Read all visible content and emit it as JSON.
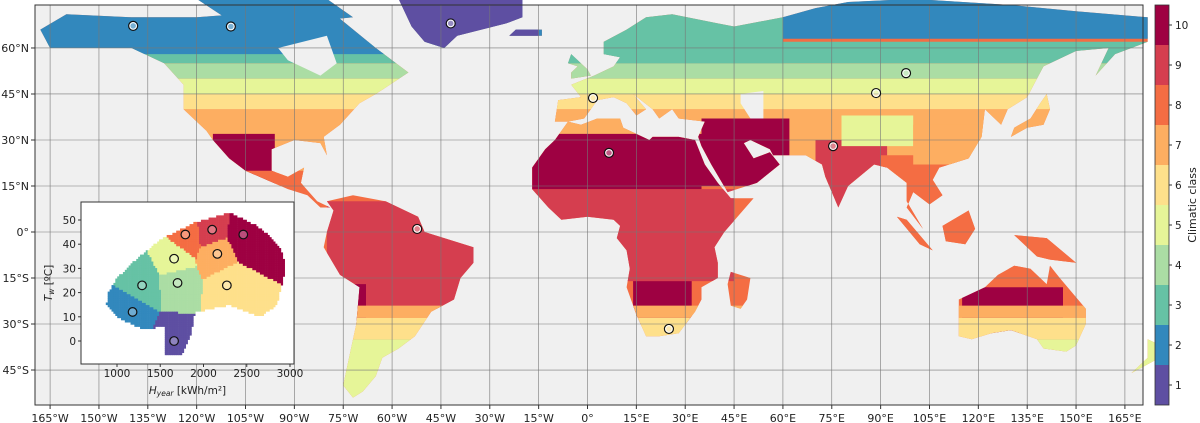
{
  "chart_data": {
    "type": "map",
    "projection": "equirectangular",
    "lon_ticks": [
      "165°W",
      "150°W",
      "135°W",
      "120°W",
      "105°W",
      "90°W",
      "75°W",
      "60°W",
      "45°W",
      "30°W",
      "15°W",
      "0°",
      "15°E",
      "30°E",
      "45°E",
      "60°E",
      "75°E",
      "90°E",
      "105°E",
      "120°E",
      "135°E",
      "150°E",
      "165°E"
    ],
    "lon_tick_values": [
      -165,
      -150,
      -135,
      -120,
      -105,
      -90,
      -75,
      -60,
      -45,
      -30,
      -15,
      0,
      15,
      30,
      45,
      60,
      75,
      90,
      105,
      120,
      135,
      150,
      165
    ],
    "lat_ticks": [
      "60°N",
      "45°N",
      "30°N",
      "15°N",
      "0°",
      "15°S",
      "30°S",
      "45°S"
    ],
    "lat_tick_values": [
      60,
      45,
      30,
      15,
      0,
      -15,
      -30,
      -45
    ],
    "grid": true,
    "colorbar": {
      "label": "Climatic class",
      "ticks": [
        "1",
        "2",
        "3",
        "4",
        "5",
        "6",
        "7",
        "8",
        "9",
        "10"
      ],
      "colors": [
        "#5e4fa2",
        "#3288bd",
        "#66c2a5",
        "#abdda4",
        "#e6f598",
        "#fee08b",
        "#fdae61",
        "#f46d43",
        "#d53e4f",
        "#9e0142"
      ]
    },
    "markers_lonlat": [
      [
        -139.5,
        67.2
      ],
      [
        -109.5,
        67
      ],
      [
        -42,
        68
      ],
      [
        97.8,
        51.8
      ],
      [
        88.6,
        45.3
      ],
      [
        1.7,
        43.7
      ],
      [
        6.6,
        25.8
      ],
      [
        75.4,
        28
      ],
      [
        -52.3,
        1
      ],
      [
        25,
        -31.6
      ]
    ],
    "inset": {
      "type": "scatter",
      "xlabel": "H",
      "xlabel_sub": "year",
      "xlabel_unit": " [kWh/m²]",
      "ylabel": "T",
      "ylabel_sub": "w",
      "ylabel_unit": " [ºC]",
      "x_ticks": [
        1000,
        1500,
        2000,
        2500,
        3000
      ],
      "y_ticks": [
        0,
        10,
        20,
        30,
        40,
        50
      ],
      "xlim": [
        580,
        3050
      ],
      "ylim": [
        -9,
        58
      ],
      "centroids": [
        {
          "class": 1,
          "H": 1660,
          "T": 0
        },
        {
          "class": 2,
          "H": 1180,
          "T": 12
        },
        {
          "class": 3,
          "H": 1290,
          "T": 23
        },
        {
          "class": 4,
          "H": 1700,
          "T": 24
        },
        {
          "class": 5,
          "H": 1660,
          "T": 34
        },
        {
          "class": 6,
          "H": 2270,
          "T": 23
        },
        {
          "class": 7,
          "H": 2160,
          "T": 36
        },
        {
          "class": 8,
          "H": 1790,
          "T": 44
        },
        {
          "class": 9,
          "H": 2100,
          "T": 46
        },
        {
          "class": 10,
          "H": 2460,
          "T": 44
        }
      ]
    }
  },
  "colors": {
    "ocean": "#f0f0f0",
    "grid": "#777777",
    "border": "#333333"
  }
}
